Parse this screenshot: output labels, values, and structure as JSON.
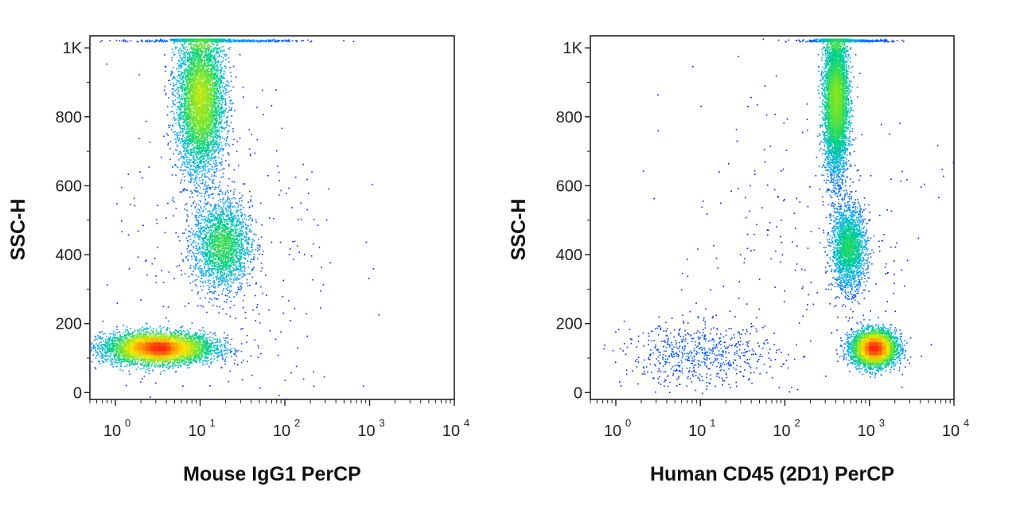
{
  "chart_data": [
    {
      "type": "scatter",
      "style": "density-dot-plot",
      "xlabel": "Mouse IgG1 PerCP",
      "ylabel": "SSC-H",
      "xscale": "log",
      "xlim": [
        0.5,
        10000
      ],
      "ylim": [
        -20,
        1035
      ],
      "x_ticks": [
        {
          "base": "10",
          "exp": "0"
        },
        {
          "base": "10",
          "exp": "1"
        },
        {
          "base": "10",
          "exp": "2"
        },
        {
          "base": "10",
          "exp": "3"
        },
        {
          "base": "10",
          "exp": "4"
        }
      ],
      "y_ticks": [
        "0",
        "200",
        "400",
        "600",
        "800",
        "1K"
      ],
      "populations": [
        {
          "name": "low-SSC cluster",
          "x_log10_center": 0.5,
          "x_log10_sd": 0.33,
          "y_center": 130,
          "y_sd": 22,
          "count": 5200
        },
        {
          "name": "mid-SSC cluster",
          "x_log10_center": 1.25,
          "x_log10_sd": 0.17,
          "y_center": 430,
          "y_sd": 65,
          "count": 2200
        },
        {
          "name": "high-SSC cluster",
          "x_log10_center": 1.0,
          "x_log10_sd": 0.14,
          "y_center": 850,
          "y_sd": 110,
          "count": 5000
        },
        {
          "name": "saturated events",
          "x_log10_center": 1.2,
          "x_log10_sd": 0.45,
          "y_center": 1025,
          "y_sd": 0,
          "count": 500
        },
        {
          "name": "sparse events",
          "x_log10_center": 1.3,
          "x_log10_sd": 0.7,
          "y_center": 380,
          "y_sd": 260,
          "count": 320
        }
      ]
    },
    {
      "type": "scatter",
      "style": "density-dot-plot",
      "xlabel": "Human CD45 (2D1) PerCP",
      "ylabel": "SSC-H",
      "xscale": "log",
      "xlim": [
        0.5,
        10000
      ],
      "ylim": [
        -20,
        1035
      ],
      "x_ticks": [
        {
          "base": "10",
          "exp": "0"
        },
        {
          "base": "10",
          "exp": "1"
        },
        {
          "base": "10",
          "exp": "2"
        },
        {
          "base": "10",
          "exp": "3"
        },
        {
          "base": "10",
          "exp": "4"
        }
      ],
      "y_ticks": [
        "0",
        "200",
        "400",
        "600",
        "800",
        "1K"
      ],
      "populations": [
        {
          "name": "high-SSC cluster",
          "x_log10_center": 2.6,
          "x_log10_sd": 0.07,
          "y_center": 850,
          "y_sd": 110,
          "count": 5200
        },
        {
          "name": "mid-SSC cluster",
          "x_log10_center": 2.75,
          "x_log10_sd": 0.1,
          "y_center": 420,
          "y_sd": 60,
          "count": 2200
        },
        {
          "name": "low-SSC cluster",
          "x_log10_center": 3.05,
          "x_log10_sd": 0.13,
          "y_center": 130,
          "y_sd": 25,
          "count": 4800
        },
        {
          "name": "CD45-negative events",
          "x_log10_center": 1.0,
          "x_log10_sd": 0.45,
          "y_center": 110,
          "y_sd": 45,
          "count": 650
        },
        {
          "name": "saturated events",
          "x_log10_center": 2.7,
          "x_log10_sd": 0.25,
          "y_center": 1025,
          "y_sd": 0,
          "count": 450
        },
        {
          "name": "sparse events",
          "x_log10_center": 2.3,
          "x_log10_sd": 0.8,
          "y_center": 450,
          "y_sd": 260,
          "count": 260
        }
      ]
    }
  ]
}
